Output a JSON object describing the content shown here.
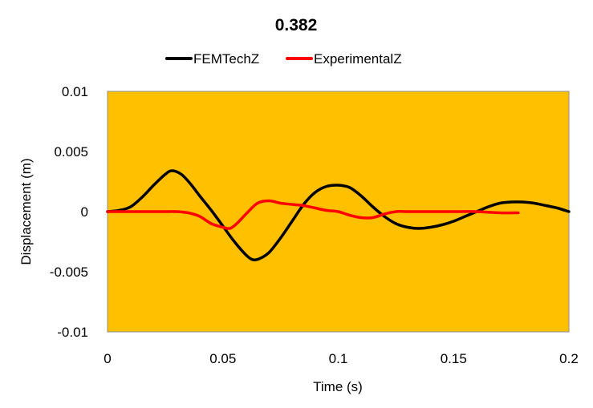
{
  "chart_data": {
    "type": "line",
    "title": "0.382",
    "xlabel": "Time (s)",
    "ylabel": "Displacement (m)",
    "xlim": [
      0,
      0.2
    ],
    "ylim": [
      -0.01,
      0.01
    ],
    "x_ticks": [
      "0",
      "0.05",
      "0.1",
      "0.15",
      "0.2"
    ],
    "y_ticks": [
      "0.01",
      "0.005",
      "0",
      "-0.005",
      "-0.01"
    ],
    "x_tick_values": [
      0,
      0.05,
      0.1,
      0.15,
      0.2
    ],
    "y_tick_values": [
      0.01,
      0.005,
      0,
      -0.005,
      -0.01
    ],
    "plot_background": "#FFC000",
    "grid": false,
    "legend_position": "top",
    "series": [
      {
        "name": "FEMTechZ",
        "color": "#000000",
        "x": [
          0,
          0.005,
          0.01,
          0.015,
          0.02,
          0.025,
          0.028,
          0.032,
          0.036,
          0.04,
          0.045,
          0.05,
          0.055,
          0.06,
          0.063,
          0.066,
          0.07,
          0.075,
          0.08,
          0.085,
          0.09,
          0.095,
          0.1,
          0.105,
          0.11,
          0.115,
          0.12,
          0.125,
          0.13,
          0.135,
          0.14,
          0.145,
          0.15,
          0.155,
          0.16,
          0.165,
          0.17,
          0.175,
          0.18,
          0.185,
          0.19,
          0.195,
          0.2
        ],
        "y": [
          0,
          0.0001,
          0.0004,
          0.0012,
          0.0022,
          0.0031,
          0.0034,
          0.0031,
          0.0023,
          0.0013,
          0.0001,
          -0.0012,
          -0.0025,
          -0.0036,
          -0.004,
          -0.0039,
          -0.0034,
          -0.0022,
          -0.0008,
          0.0006,
          0.0016,
          0.0021,
          0.0022,
          0.002,
          0.0013,
          0.0004,
          -0.0004,
          -0.001,
          -0.0013,
          -0.0014,
          -0.0013,
          -0.0011,
          -0.0008,
          -0.0004,
          0,
          0.0004,
          0.0007,
          0.0008,
          0.0008,
          0.0007,
          0.0005,
          0.0003,
          0
        ]
      },
      {
        "name": "ExperimentalZ",
        "color": "#FF0000",
        "x": [
          0,
          0.005,
          0.01,
          0.015,
          0.02,
          0.025,
          0.03,
          0.035,
          0.04,
          0.045,
          0.05,
          0.053,
          0.056,
          0.06,
          0.065,
          0.07,
          0.075,
          0.08,
          0.085,
          0.09,
          0.095,
          0.1,
          0.105,
          0.11,
          0.115,
          0.12,
          0.125,
          0.13,
          0.14,
          0.15,
          0.16,
          0.17,
          0.178
        ],
        "y": [
          0,
          0,
          0,
          0,
          0,
          0,
          0,
          -0.0001,
          -0.0004,
          -0.001,
          -0.0013,
          -0.0014,
          -0.001,
          -0.0002,
          0.0007,
          0.0009,
          0.0007,
          0.0006,
          0.0005,
          0.0003,
          0.0001,
          0,
          -0.0003,
          -0.0005,
          -0.0005,
          -0.0002,
          0,
          0,
          0,
          0,
          0,
          -0.0001,
          -0.0001
        ]
      }
    ]
  }
}
